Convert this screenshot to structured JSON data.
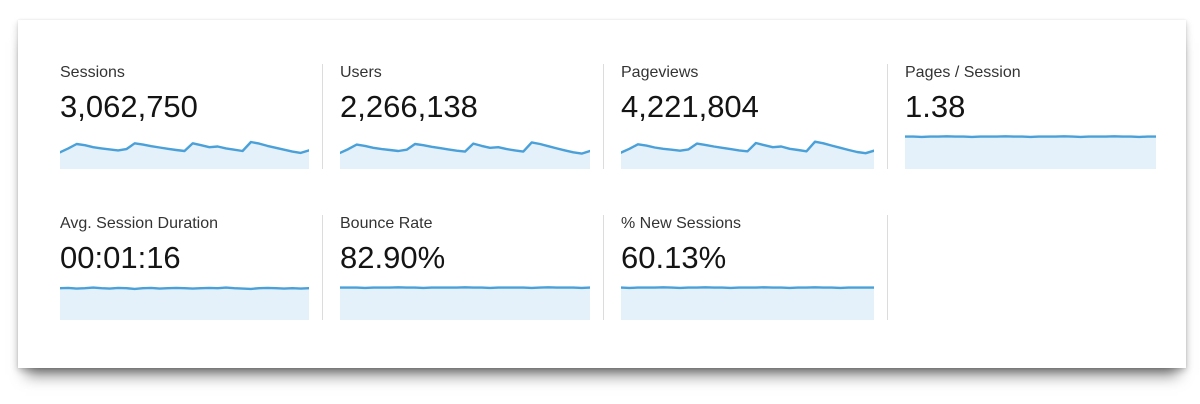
{
  "panel": {
    "colors": {
      "spark_line": "#4AA0D8",
      "spark_fill": "#E4F0FA",
      "divider": "#DCDCDC"
    },
    "rows": [
      {
        "metrics": [
          {
            "label": "Sessions",
            "value": "3,062,750",
            "spark": [
              46,
              58,
              72,
              68,
              62,
              58,
              55,
              52,
              56,
              74,
              70,
              65,
              61,
              57,
              53,
              50,
              74,
              68,
              62,
              64,
              58,
              54,
              50,
              78,
              73,
              66,
              60,
              54,
              48,
              44,
              52
            ]
          },
          {
            "label": "Users",
            "value": "2,266,138",
            "spark": [
              44,
              56,
              70,
              66,
              60,
              56,
              53,
              50,
              54,
              72,
              68,
              63,
              59,
              55,
              51,
              48,
              73,
              66,
              60,
              62,
              56,
              52,
              48,
              77,
              72,
              65,
              58,
              52,
              46,
              42,
              50
            ]
          },
          {
            "label": "Pageviews",
            "value": "4,221,804",
            "spark": [
              45,
              57,
              71,
              67,
              61,
              57,
              54,
              51,
              55,
              73,
              69,
              64,
              60,
              56,
              52,
              49,
              75,
              68,
              62,
              64,
              57,
              53,
              49,
              79,
              74,
              67,
              60,
              53,
              47,
              43,
              51
            ]
          },
          {
            "label": "Pages / Session",
            "value": "1.38",
            "spark": [
              95,
              95,
              94,
              95,
              95,
              96,
              95,
              95,
              94,
              95,
              95,
              95,
              96,
              95,
              95,
              94,
              95,
              95,
              95,
              96,
              95,
              94,
              95,
              95,
              95,
              96,
              95,
              95,
              94,
              95,
              95
            ]
          }
        ]
      },
      {
        "metrics": [
          {
            "label": "Avg. Session Duration",
            "value": "00:01:16",
            "spark": [
              93,
              94,
              92,
              93,
              95,
              93,
              92,
              94,
              93,
              91,
              93,
              94,
              92,
              93,
              94,
              93,
              92,
              93,
              94,
              93,
              95,
              93,
              92,
              91,
              93,
              94,
              93,
              92,
              93,
              92,
              93
            ]
          },
          {
            "label": "Bounce Rate",
            "value": "82.90%",
            "spark": [
              95,
              95,
              95,
              94,
              95,
              95,
              95,
              96,
              95,
              95,
              94,
              95,
              95,
              95,
              95,
              96,
              95,
              95,
              94,
              95,
              95,
              95,
              95,
              94,
              95,
              96,
              95,
              95,
              95,
              94,
              95
            ]
          },
          {
            "label": "% New Sessions",
            "value": "60.13%",
            "spark": [
              95,
              94,
              95,
              95,
              95,
              96,
              95,
              94,
              95,
              95,
              96,
              95,
              95,
              94,
              95,
              95,
              95,
              96,
              95,
              95,
              94,
              95,
              95,
              96,
              95,
              95,
              94,
              95,
              95,
              95,
              95
            ]
          }
        ]
      }
    ]
  }
}
